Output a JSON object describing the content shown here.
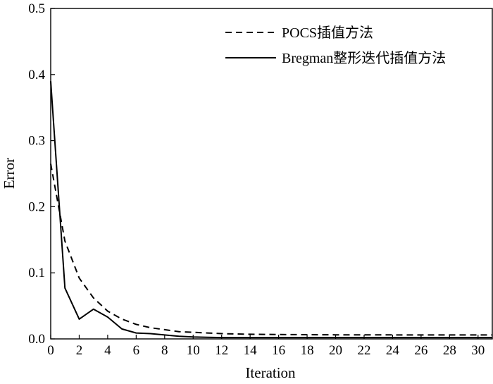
{
  "chart_data": {
    "type": "line",
    "xlabel": "Iteration",
    "ylabel": "Error",
    "xlim": [
      0,
      31
    ],
    "ylim": [
      0,
      0.5
    ],
    "xticks": [
      "0",
      "2",
      "4",
      "6",
      "8",
      "10",
      "12",
      "14",
      "16",
      "18",
      "20",
      "22",
      "24",
      "26",
      "28",
      "30"
    ],
    "yticks": [
      "0.0",
      "0.1",
      "0.2",
      "0.3",
      "0.4",
      "0.5"
    ],
    "grid": false,
    "legend_position": "top-right",
    "series": [
      {
        "name": "POCS插值方法",
        "style": "dashed",
        "color": "#000000",
        "x": [
          0,
          1,
          2,
          3,
          4,
          5,
          6,
          7,
          8,
          9,
          10,
          11,
          12,
          13,
          14,
          15,
          16,
          17,
          18,
          19,
          20,
          21,
          22,
          23,
          24,
          25,
          26,
          27,
          28,
          29,
          30,
          31
        ],
        "y": [
          0.265,
          0.148,
          0.092,
          0.062,
          0.042,
          0.03,
          0.022,
          0.017,
          0.014,
          0.011,
          0.01,
          0.009,
          0.008,
          0.0075,
          0.007,
          0.0068,
          0.0066,
          0.0065,
          0.0064,
          0.0063,
          0.0062,
          0.0062,
          0.0061,
          0.0061,
          0.0061,
          0.006,
          0.006,
          0.006,
          0.006,
          0.006,
          0.006,
          0.006
        ]
      },
      {
        "name": "Bregman整形迭代插值方法",
        "style": "solid",
        "color": "#000000",
        "x": [
          0,
          1,
          2,
          3,
          4,
          5,
          6,
          7,
          8,
          9,
          10,
          11,
          12,
          13,
          14,
          15,
          16,
          17,
          18,
          19,
          20,
          21,
          22,
          23,
          24,
          25,
          26,
          27,
          28,
          29,
          30,
          31
        ],
        "y": [
          0.39,
          0.077,
          0.03,
          0.045,
          0.033,
          0.015,
          0.009,
          0.008,
          0.006,
          0.004,
          0.003,
          0.0025,
          0.002,
          0.002,
          0.002,
          0.002,
          0.002,
          0.002,
          0.002,
          0.002,
          0.002,
          0.002,
          0.002,
          0.002,
          0.002,
          0.002,
          0.002,
          0.002,
          0.002,
          0.002,
          0.002,
          0.002
        ]
      }
    ]
  }
}
